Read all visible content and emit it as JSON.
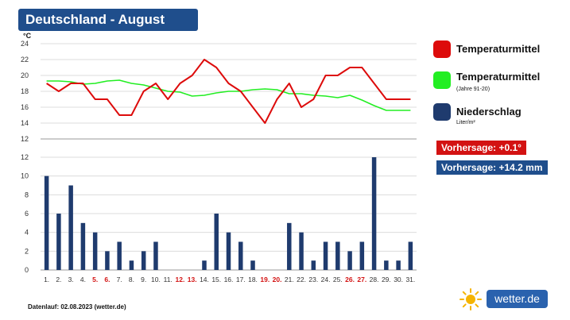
{
  "title": "Deutschland - August",
  "unit_label": "°C",
  "legend": [
    {
      "label": "Temperaturmittel",
      "sub": "",
      "color": "#dd0b0b"
    },
    {
      "label": "Temperaturmittel",
      "sub": "(Jahre 91-20)",
      "color": "#22ee22"
    },
    {
      "label": "Niederschlag",
      "sub": "Liter/m²",
      "color": "#1f3b6e"
    }
  ],
  "forecast_temp": "Vorhersage: +0.1°",
  "forecast_precip": "Vorhersage: +14.2 mm",
  "forecast_temp_color": "#d31212",
  "forecast_precip_color": "#1f4e8c",
  "footer": "Datenlauf: 02.08.2023 (wetter.de)",
  "brand": "wetter.de",
  "chart_data": {
    "type": "line+bar",
    "title": "Deutschland - August",
    "ylabel": "°C",
    "categories": [
      "1.",
      "2.",
      "3.",
      "4.",
      "5.",
      "6.",
      "7.",
      "8.",
      "9.",
      "10.",
      "11.",
      "12.",
      "13.",
      "14.",
      "15.",
      "16.",
      "17.",
      "18.",
      "19.",
      "20.",
      "21.",
      "22.",
      "23.",
      "24.",
      "25.",
      "26.",
      "27.",
      "28.",
      "29.",
      "30.",
      "31."
    ],
    "weekend_days": [
      "5.",
      "6.",
      "12.",
      "13.",
      "19.",
      "20.",
      "26.",
      "27."
    ],
    "temperature": {
      "name": "Temperaturmittel",
      "ylim": [
        12,
        24
      ],
      "ticks": [
        12,
        14,
        16,
        18,
        20,
        22,
        24
      ],
      "values": [
        19,
        18,
        19,
        19,
        17,
        17,
        15,
        15,
        18,
        19,
        17,
        19,
        20,
        22,
        21,
        19,
        18,
        16,
        14,
        17,
        19,
        16,
        17,
        20,
        20,
        21,
        21,
        19,
        17,
        17,
        17
      ]
    },
    "climate": {
      "name": "Temperaturmittel (Jahre 91-20)",
      "values": [
        19.3,
        19.3,
        19.2,
        18.9,
        19.0,
        19.3,
        19.4,
        19.0,
        18.8,
        18.4,
        18.0,
        17.9,
        17.4,
        17.5,
        17.8,
        18.0,
        18.0,
        18.2,
        18.3,
        18.2,
        17.7,
        17.7,
        17.5,
        17.4,
        17.2,
        17.5,
        16.9,
        16.2,
        15.6,
        15.6,
        15.6
      ]
    },
    "precipitation": {
      "name": "Niederschlag",
      "unit": "Liter/m²",
      "ylim": [
        0,
        12
      ],
      "ticks": [
        0,
        2,
        4,
        6,
        8,
        10,
        12
      ],
      "values": [
        10,
        6,
        9,
        5,
        4,
        2,
        3,
        1,
        2,
        3,
        0,
        0,
        0,
        1,
        6,
        4,
        3,
        1,
        0,
        0,
        5,
        4,
        1,
        3,
        3,
        2,
        3,
        12,
        1,
        1,
        3
      ]
    }
  }
}
